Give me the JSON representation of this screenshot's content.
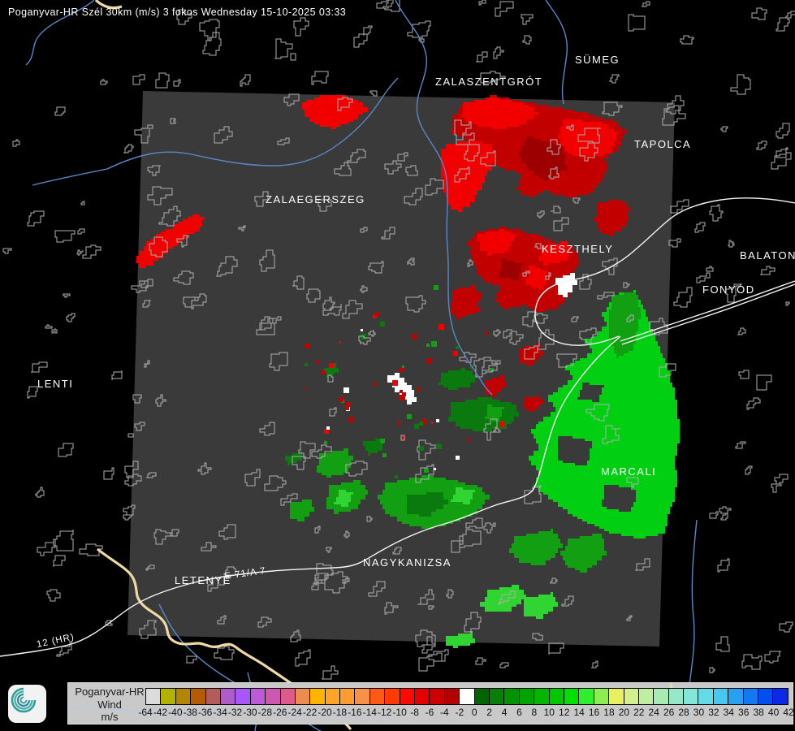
{
  "title": "Poganyvar-HR Szél 30km (m/s) 3 fokos Wednesday 15-10-2025 03:33",
  "legend": {
    "radar_name": "Poganyvar-HR",
    "product": "Wind",
    "unit": "m/s",
    "boundaries": [
      "-64",
      "-42",
      "-40",
      "-38",
      "-36",
      "-34",
      "-32",
      "-30",
      "-28",
      "-26",
      "-24",
      "-22",
      "-20",
      "-18",
      "-16",
      "-14",
      "-12",
      "-10",
      "-8",
      "-6",
      "-4",
      "-2",
      "0",
      "2",
      "4",
      "6",
      "8",
      "10",
      "12",
      "14",
      "16",
      "18",
      "20",
      "22",
      "24",
      "26",
      "28",
      "30",
      "32",
      "34",
      "36",
      "38",
      "40",
      "42"
    ],
    "colors": [
      "#dcdcdc",
      "#b2b200",
      "#b28600",
      "#b45c04",
      "#b25c5c",
      "#b05cc8",
      "#a855fa",
      "#bc5ad8",
      "#cc58b0",
      "#dc5a8c",
      "#ec8c50",
      "#ffb400",
      "#ffa428",
      "#ff9c30",
      "#f89048",
      "#ff5a14",
      "#ff3c00",
      "#ff0a00",
      "#e60000",
      "#cd0000",
      "#b40000",
      "#ffffff",
      "#016601",
      "#068006",
      "#029202",
      "#02a402",
      "#02b602",
      "#00c800",
      "#00e000",
      "#2eee2e",
      "#8cee50",
      "#e8f060",
      "#d2f08c",
      "#c0eea0",
      "#a8eab4",
      "#96e8c8",
      "#82e6da",
      "#64dce6",
      "#46c8f0",
      "#28a0f0",
      "#1478f0",
      "#0050f0",
      "#0a2ae6"
    ]
  },
  "map": {
    "cities": [
      {
        "id": "sumeg",
        "text": "SÜMEG"
      },
      {
        "id": "zalaszentgrot",
        "text": "ZALASZENTGRÓT"
      },
      {
        "id": "tapolca",
        "text": "TAPOLCA"
      },
      {
        "id": "zalaegerszeg",
        "text": "ZALAEGERSZEG"
      },
      {
        "id": "keszthely",
        "text": "KESZTHELY"
      },
      {
        "id": "balatonbo",
        "text": "BALATONBO"
      },
      {
        "id": "fonyod",
        "text": "FONYÓD"
      },
      {
        "id": "lenti",
        "text": "LENTI"
      },
      {
        "id": "marcali",
        "text": "MARCALI"
      },
      {
        "id": "nagykanizsa",
        "text": "NAGYKANIZSA"
      },
      {
        "id": "letenye",
        "text": "LETENYE"
      }
    ],
    "road_labels": [
      {
        "id": "e71",
        "text": "E 71/A 7"
      },
      {
        "id": "hr12",
        "text": "12 (HR)"
      }
    ]
  },
  "colors": {
    "background": "#000000",
    "scan_area": "#3a3a3a",
    "outline": "#b0b0b0",
    "river": "#5b87c8",
    "river_light": "#b9c9e2",
    "road": "#f5f5f5",
    "motorway": "#eed9a1",
    "label": "#ffffff",
    "red_bright": "#f20000",
    "red_dark": "#c30000",
    "red_deep": "#9c0000",
    "green_dark": "#0a7a0f",
    "green_med": "#12a012",
    "green_bright": "#00cf12",
    "green_light": "#31d531",
    "white_echo": "#ffffff"
  }
}
